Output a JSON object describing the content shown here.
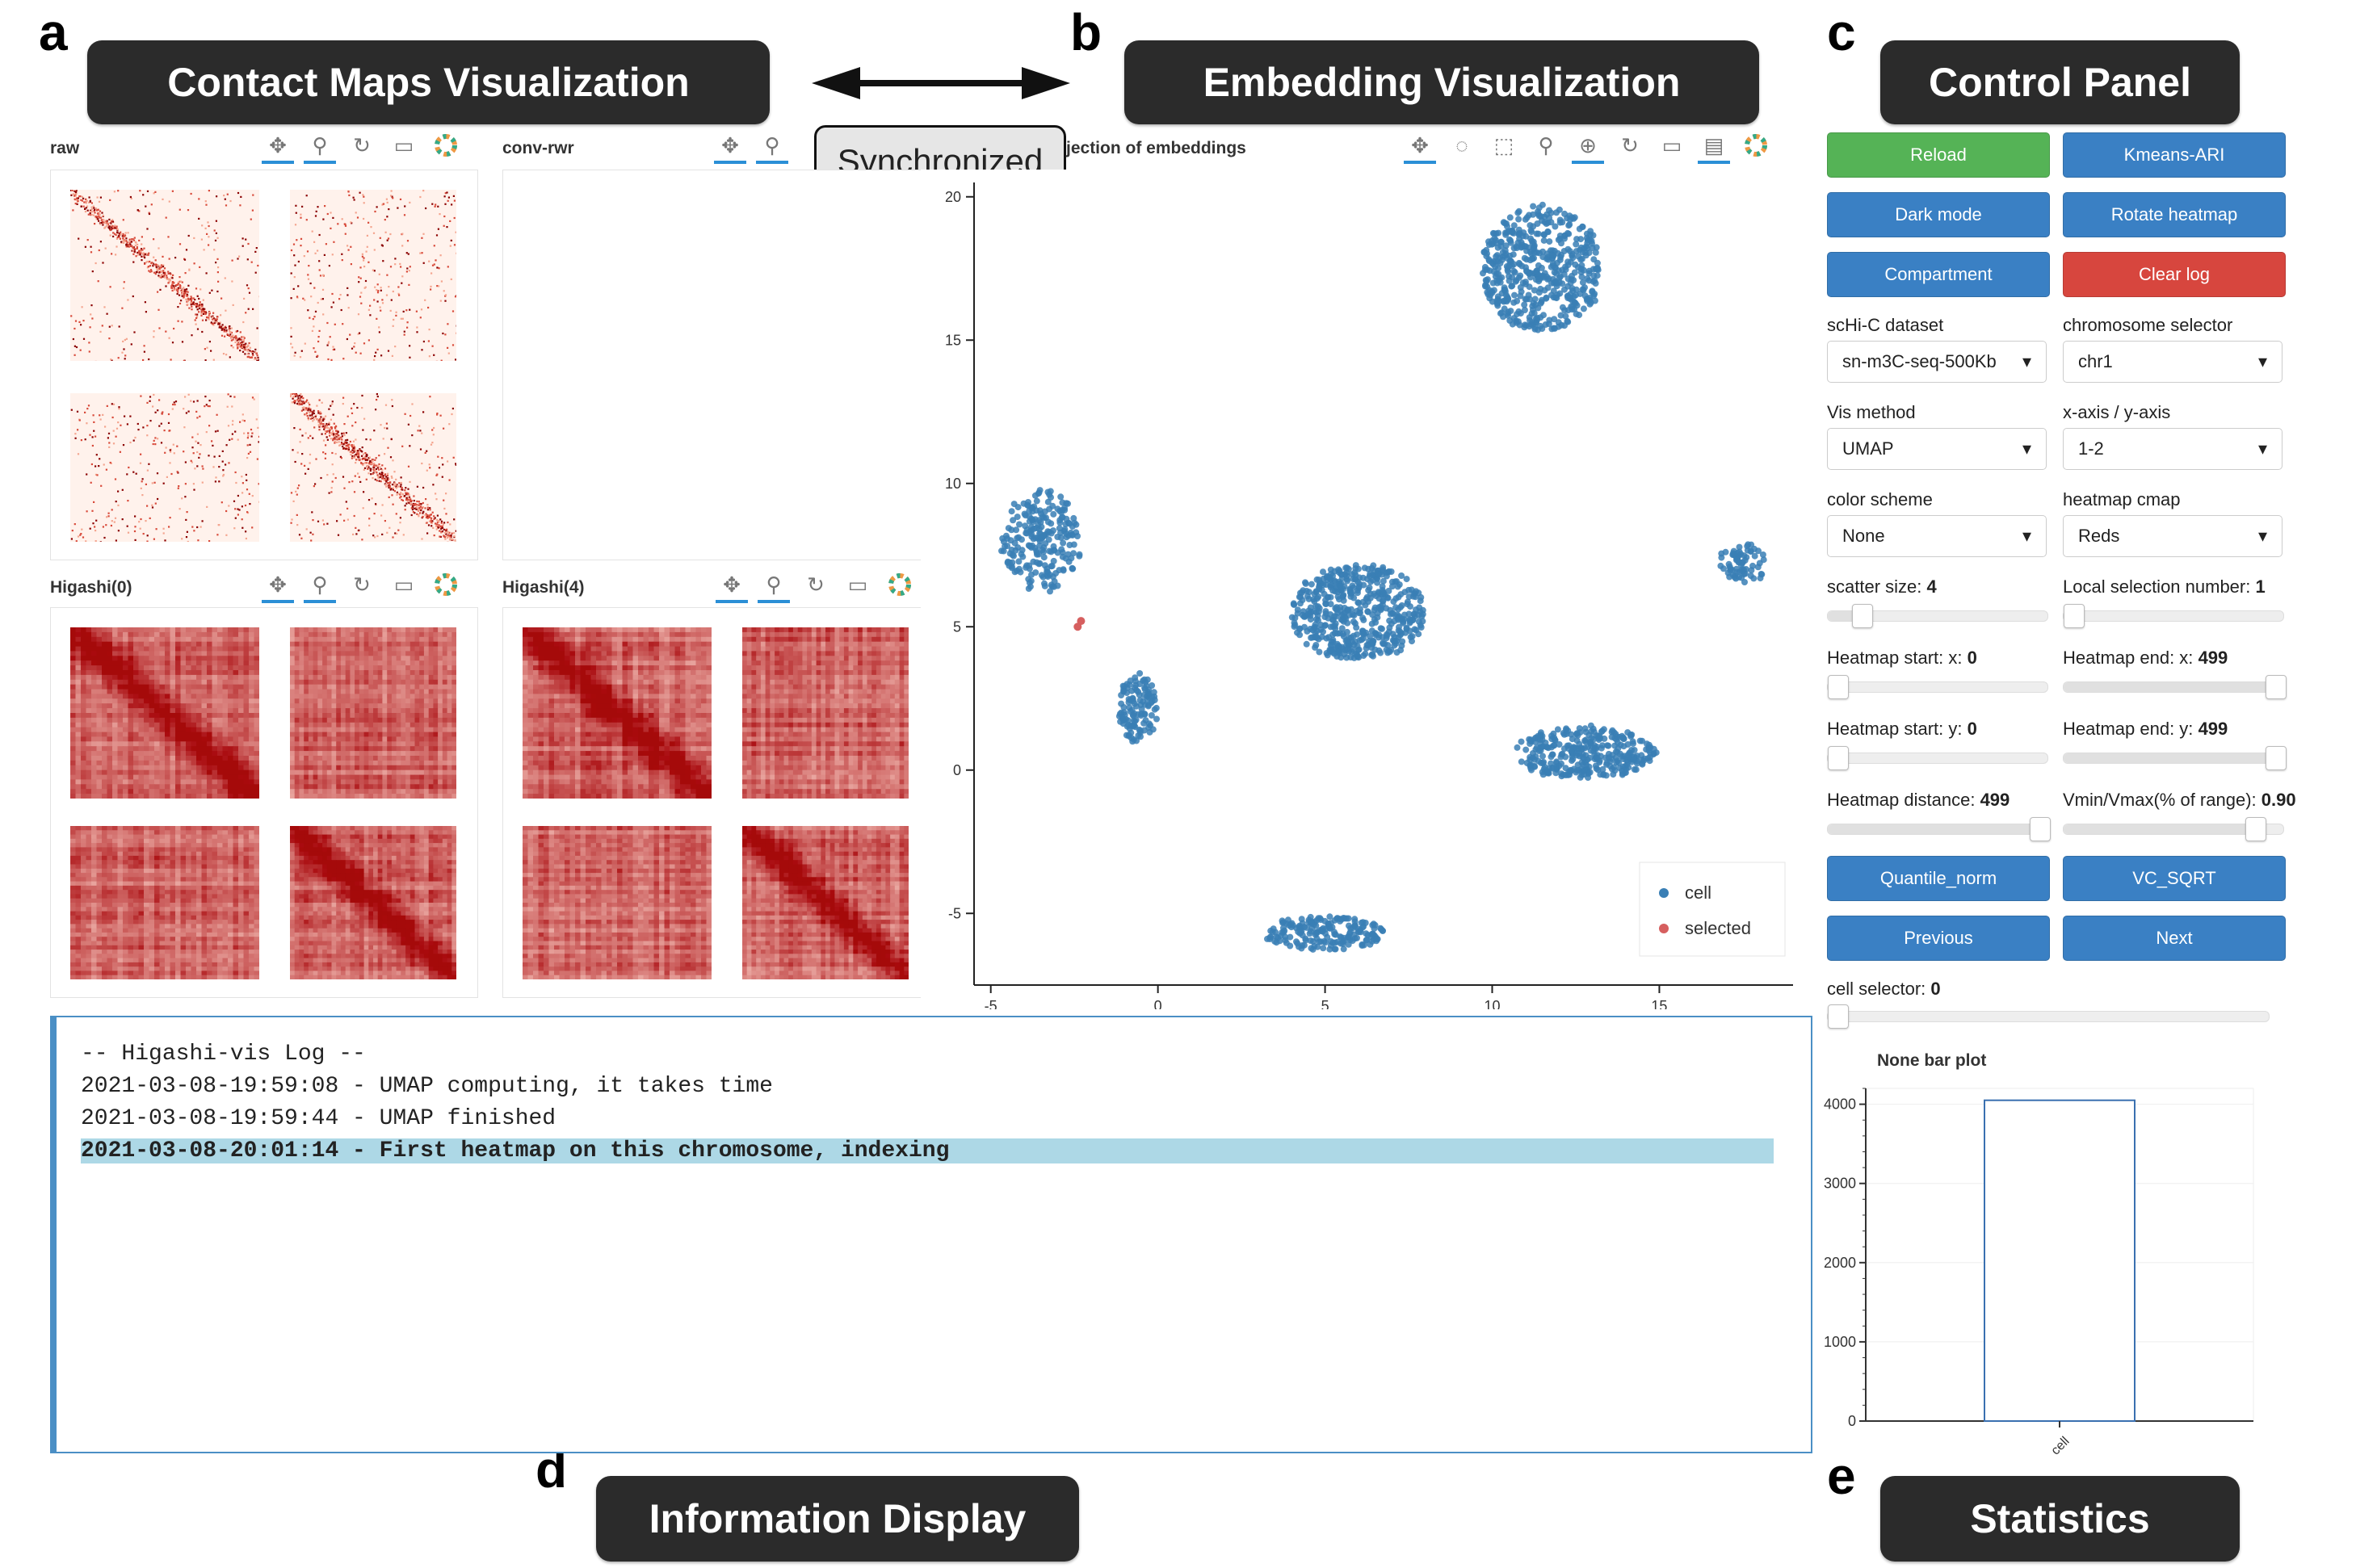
{
  "figure_letters": {
    "a": "a",
    "b": "b",
    "c": "c",
    "d": "d",
    "e": "e"
  },
  "banners": {
    "contact_maps": "Contact Maps Visualization",
    "embedding": "Embedding Visualization",
    "control_panel": "Control Panel",
    "information_display": "Information Display",
    "statistics": "Statistics"
  },
  "sync_label": "Synchronized",
  "heatmap_panels": [
    {
      "title": "raw"
    },
    {
      "title": "conv-rwr"
    },
    {
      "title": "Higashi(0)"
    },
    {
      "title": "Higashi(4)"
    }
  ],
  "embedding_plot": {
    "title": "jection of embeddings",
    "legend": [
      {
        "label": "cell",
        "color": "#3a7fb5"
      },
      {
        "label": "selected",
        "color": "#d65f5f"
      }
    ],
    "x_ticks": [
      "-5",
      "0",
      "5",
      "10",
      "15"
    ],
    "y_ticks": [
      "20",
      "15",
      "10",
      "5",
      "0",
      "-5"
    ]
  },
  "chart_data": [
    {
      "type": "scatter",
      "title": "jection of embeddings",
      "xlabel": "",
      "ylabel": "",
      "xlim": [
        -5.5,
        19
      ],
      "ylim": [
        -7.5,
        20.5
      ],
      "series": [
        {
          "name": "cell",
          "color": "#3a7fb5",
          "clusters": [
            {
              "cx": 11.5,
              "cy": 17.5,
              "rx": 1.8,
              "ry": 2.2,
              "n": 520
            },
            {
              "cx": -3.5,
              "cy": 8.0,
              "rx": 1.2,
              "ry": 1.8,
              "n": 230
            },
            {
              "cx": -0.6,
              "cy": 2.2,
              "rx": 0.6,
              "ry": 1.2,
              "n": 120
            },
            {
              "cx": 6.0,
              "cy": 5.5,
              "rx": 2.0,
              "ry": 1.7,
              "n": 520
            },
            {
              "cx": 12.8,
              "cy": 0.6,
              "rx": 2.1,
              "ry": 0.9,
              "n": 330
            },
            {
              "cx": 17.5,
              "cy": 7.2,
              "rx": 0.7,
              "ry": 0.7,
              "n": 70
            },
            {
              "cx": 5.0,
              "cy": -5.7,
              "rx": 1.8,
              "ry": 0.6,
              "n": 190
            }
          ]
        },
        {
          "name": "selected",
          "color": "#d65f5f",
          "points": [
            [
              -2.4,
              5.0
            ],
            [
              -2.3,
              5.2
            ]
          ]
        }
      ],
      "legend_position": "bottom-right"
    },
    {
      "type": "bar",
      "title": "None bar plot",
      "categories": [
        "cell"
      ],
      "values": [
        4050
      ],
      "ylim": [
        0,
        4200
      ],
      "yticks": [
        "0",
        "1000",
        "2000",
        "3000",
        "4000"
      ]
    }
  ],
  "controls": {
    "buttons": {
      "reload": "Reload",
      "kmeans": "Kmeans-ARI",
      "dark_mode": "Dark mode",
      "rotate_heatmap": "Rotate heatmap",
      "compartment": "Compartment",
      "clear_log": "Clear log",
      "quantile_norm": "Quantile_norm",
      "vc_sqrt": "VC_SQRT",
      "previous": "Previous",
      "next": "Next"
    },
    "selects": {
      "dataset_label": "scHi-C dataset",
      "dataset_value": "sn-m3C-seq-500Kb",
      "chrom_label": "chromosome selector",
      "chrom_value": "chr1",
      "vis_label": "Vis method",
      "vis_value": "UMAP",
      "axis_label": "x-axis / y-axis",
      "axis_value": "1-2",
      "color_label": "color scheme",
      "color_value": "None",
      "cmap_label": "heatmap cmap",
      "cmap_value": "Reds"
    },
    "sliders": {
      "scatter_size_label": "scatter size:",
      "scatter_size_value": "4",
      "scatter_size_frac": 0.12,
      "local_sel_label": "Local selection number:",
      "local_sel_value": "1",
      "local_sel_frac": 0.0,
      "hm_start_x_label": "Heatmap start: x:",
      "hm_start_x_value": "0",
      "hm_start_x_frac": 0.0,
      "hm_end_x_label": "Heatmap end: x:",
      "hm_end_x_value": "499",
      "hm_end_x_frac": 1.0,
      "hm_start_y_label": "Heatmap start: y:",
      "hm_start_y_value": "0",
      "hm_start_y_frac": 0.0,
      "hm_end_y_label": "Heatmap end: y:",
      "hm_end_y_value": "499",
      "hm_end_y_frac": 1.0,
      "hm_dist_label": "Heatmap distance:",
      "hm_dist_value": "499",
      "hm_dist_frac": 1.0,
      "vmin_label": "Vmin/Vmax(% of range):",
      "vmin_value": "0.90",
      "vmin_frac": 0.9,
      "cell_sel_label": "cell selector:",
      "cell_sel_value": "0",
      "cell_sel_frac": 0.0
    }
  },
  "log": {
    "lines": [
      "-- Higashi-vis Log --",
      "2021-03-08-19:59:08 - UMAP computing, it takes time",
      "2021-03-08-19:59:44 - UMAP finished",
      "2021-03-08-20:01:14 - First heatmap on this chromosome, indexing"
    ]
  }
}
